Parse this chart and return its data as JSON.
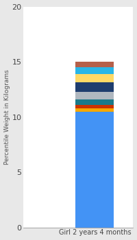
{
  "category": "Girl 2 years 4 months",
  "segments": [
    {
      "value": 10.5,
      "color": "#4393f5"
    },
    {
      "value": 0.3,
      "color": "#f5a800"
    },
    {
      "value": 0.3,
      "color": "#cc3300"
    },
    {
      "value": 0.5,
      "color": "#1a7a8a"
    },
    {
      "value": 0.65,
      "color": "#b0b8c0"
    },
    {
      "value": 0.9,
      "color": "#1f3d6e"
    },
    {
      "value": 0.75,
      "color": "#ffd966"
    },
    {
      "value": 0.6,
      "color": "#29b6e8"
    },
    {
      "value": 0.5,
      "color": "#b5604a"
    }
  ],
  "ylabel": "Percentile Weight in Kilograms",
  "ylim": [
    0,
    20
  ],
  "yticks": [
    0,
    5,
    10,
    15,
    20
  ],
  "bar_width": 0.35,
  "background_color": "#e8e8e8",
  "plot_bg": "#ffffff",
  "figsize": [
    2.0,
    3.5
  ],
  "dpi": 100
}
